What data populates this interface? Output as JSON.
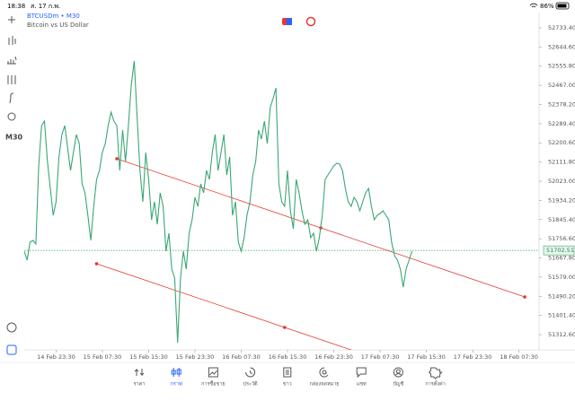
{
  "status_bar": {
    "time": "18:38",
    "date": "ส. 17 ก.พ.",
    "battery": "86%"
  },
  "toolbar": {
    "timeframe": "M30"
  },
  "chart_data": {
    "type": "line",
    "title": "BTCUSDm • M30",
    "subtitle": "Bitcoin vs US Dollar",
    "series": [
      {
        "name": "BTCUSDm",
        "color": "#3aa774",
        "values": [
          51699.1,
          51657.5,
          51740.6,
          51748.9,
          51732.3,
          52093.7,
          52280.6,
          52301.4,
          52114.5,
          51989.9,
          51865.2,
          51927.5,
          52135.3,
          52239.1,
          52280.6,
          52176.8,
          52073.0,
          52156.0,
          52239.1,
          52197.6,
          52010.6,
          51969.1,
          51865.2,
          51748.9,
          51906.8,
          52031.4,
          52073.0,
          52156.0,
          52197.6,
          52280.6,
          52343.0,
          52301.4,
          52280.6,
          52073.0,
          52259.9,
          52114.5,
          52280.6,
          52467.6,
          52579.7,
          52322.2,
          52073.0,
          51927.5,
          52156.0,
          52031.4,
          51844.5,
          51927.5,
          51823.7,
          51969.1,
          51906.8,
          51699.1,
          51782.2,
          51616.0,
          51574.5,
          51275.4,
          51574.5,
          51699.1,
          51616.0,
          51782.2,
          51844.5,
          51948.3,
          51906.8,
          52010.6,
          51969.1,
          52073.0,
          52031.4,
          52156.0,
          52239.1,
          52073.0,
          52156.0,
          52239.1,
          52052.2,
          52135.3,
          51865.2,
          51927.5,
          51740.6,
          51699.1,
          51761.4,
          51865.2,
          51927.5,
          52052.2,
          52114.5,
          52259.9,
          52218.4,
          52301.4,
          52197.6,
          52363.7,
          52405.3,
          52455.1,
          52010.6,
          51927.5,
          51906.8,
          52073.0,
          51886.0,
          51802.9,
          52031.4,
          51969.1,
          51886.0,
          51823.7,
          51844.5,
          51761.4,
          51782.2,
          51699.1,
          51761.4,
          51865.2,
          52031.4,
          52052.2,
          52073.0,
          52093.7,
          52106.2,
          52102.0,
          52073.0,
          51989.9,
          51927.5,
          51906.8,
          51948.3,
          51927.5,
          51886.0,
          51927.5,
          51969.1,
          51989.9,
          51906.8,
          51844.5,
          51865.2,
          51873.5,
          51886.0,
          51865.2,
          51844.5,
          51740.6,
          51678.3,
          51657.5,
          51616.0,
          51532.9,
          51616.0,
          51657.5,
          51699.1
        ]
      }
    ],
    "current_price": 51702.51,
    "trendlines": [
      {
        "x": [
          32,
          173
        ],
        "y": [
          52127,
          51487
        ]
      },
      {
        "x": [
          25,
          90
        ],
        "y": [
          51641,
          51346
        ]
      }
    ],
    "ylim": [
      51242,
      52804
    ],
    "yticks": [
      {
        "value": 52733.4,
        "label": "52733.40"
      },
      {
        "value": 52644.6,
        "label": "52644.60"
      },
      {
        "value": 52555.8,
        "label": "52555.80"
      },
      {
        "value": 52467,
        "label": "52467.00"
      },
      {
        "value": 52378.2,
        "label": "52378.20"
      },
      {
        "value": 52289.4,
        "label": "52289.40"
      },
      {
        "value": 52200.6,
        "label": "52200.60"
      },
      {
        "value": 52111.8,
        "label": "52111.80"
      },
      {
        "value": 52023,
        "label": "52023.00"
      },
      {
        "value": 51934.2,
        "label": "51934.20"
      },
      {
        "value": 51845.4,
        "label": "51845.40"
      },
      {
        "value": 51756.6,
        "label": "51756.60"
      },
      {
        "value": 51667.8,
        "label": "51667.80"
      },
      {
        "value": 51579,
        "label": "51579.00"
      },
      {
        "value": 51490.2,
        "label": "51490.20"
      },
      {
        "value": 51401.4,
        "label": "51401.40"
      },
      {
        "value": 51312.6,
        "label": "51312.60"
      }
    ],
    "xlim": [
      0,
      178
    ],
    "xticks": [
      {
        "value": 11,
        "label": "14 Feb 23:30"
      },
      {
        "value": 27,
        "label": "15 Feb 07:30"
      },
      {
        "value": 43,
        "label": "15 Feb 15:30"
      },
      {
        "value": 59,
        "label": "15 Feb 23:30"
      },
      {
        "value": 75,
        "label": "16 Feb 07:30"
      },
      {
        "value": 91,
        "label": "16 Feb 15:30"
      },
      {
        "value": 107,
        "label": "16 Feb 23:30"
      },
      {
        "value": 123,
        "label": "17 Feb 07:30"
      },
      {
        "value": 139,
        "label": "17 Feb 15:30"
      },
      {
        "value": 155,
        "label": "17 Feb 23:30"
      },
      {
        "value": 171,
        "label": "18 Feb 07:30"
      }
    ]
  },
  "tabs": [
    {
      "label": "ราคา",
      "active": false
    },
    {
      "label": "กราฟ",
      "active": true
    },
    {
      "label": "การซื้อขาย",
      "active": false
    },
    {
      "label": "ประวัติ",
      "active": false
    },
    {
      "label": "ข่าว",
      "active": false
    },
    {
      "label": "กล่องจดหมาย",
      "active": false
    },
    {
      "label": "แชท",
      "active": false
    },
    {
      "label": "บัญชี",
      "active": false
    },
    {
      "label": "การตั้งค่า",
      "active": false
    }
  ]
}
